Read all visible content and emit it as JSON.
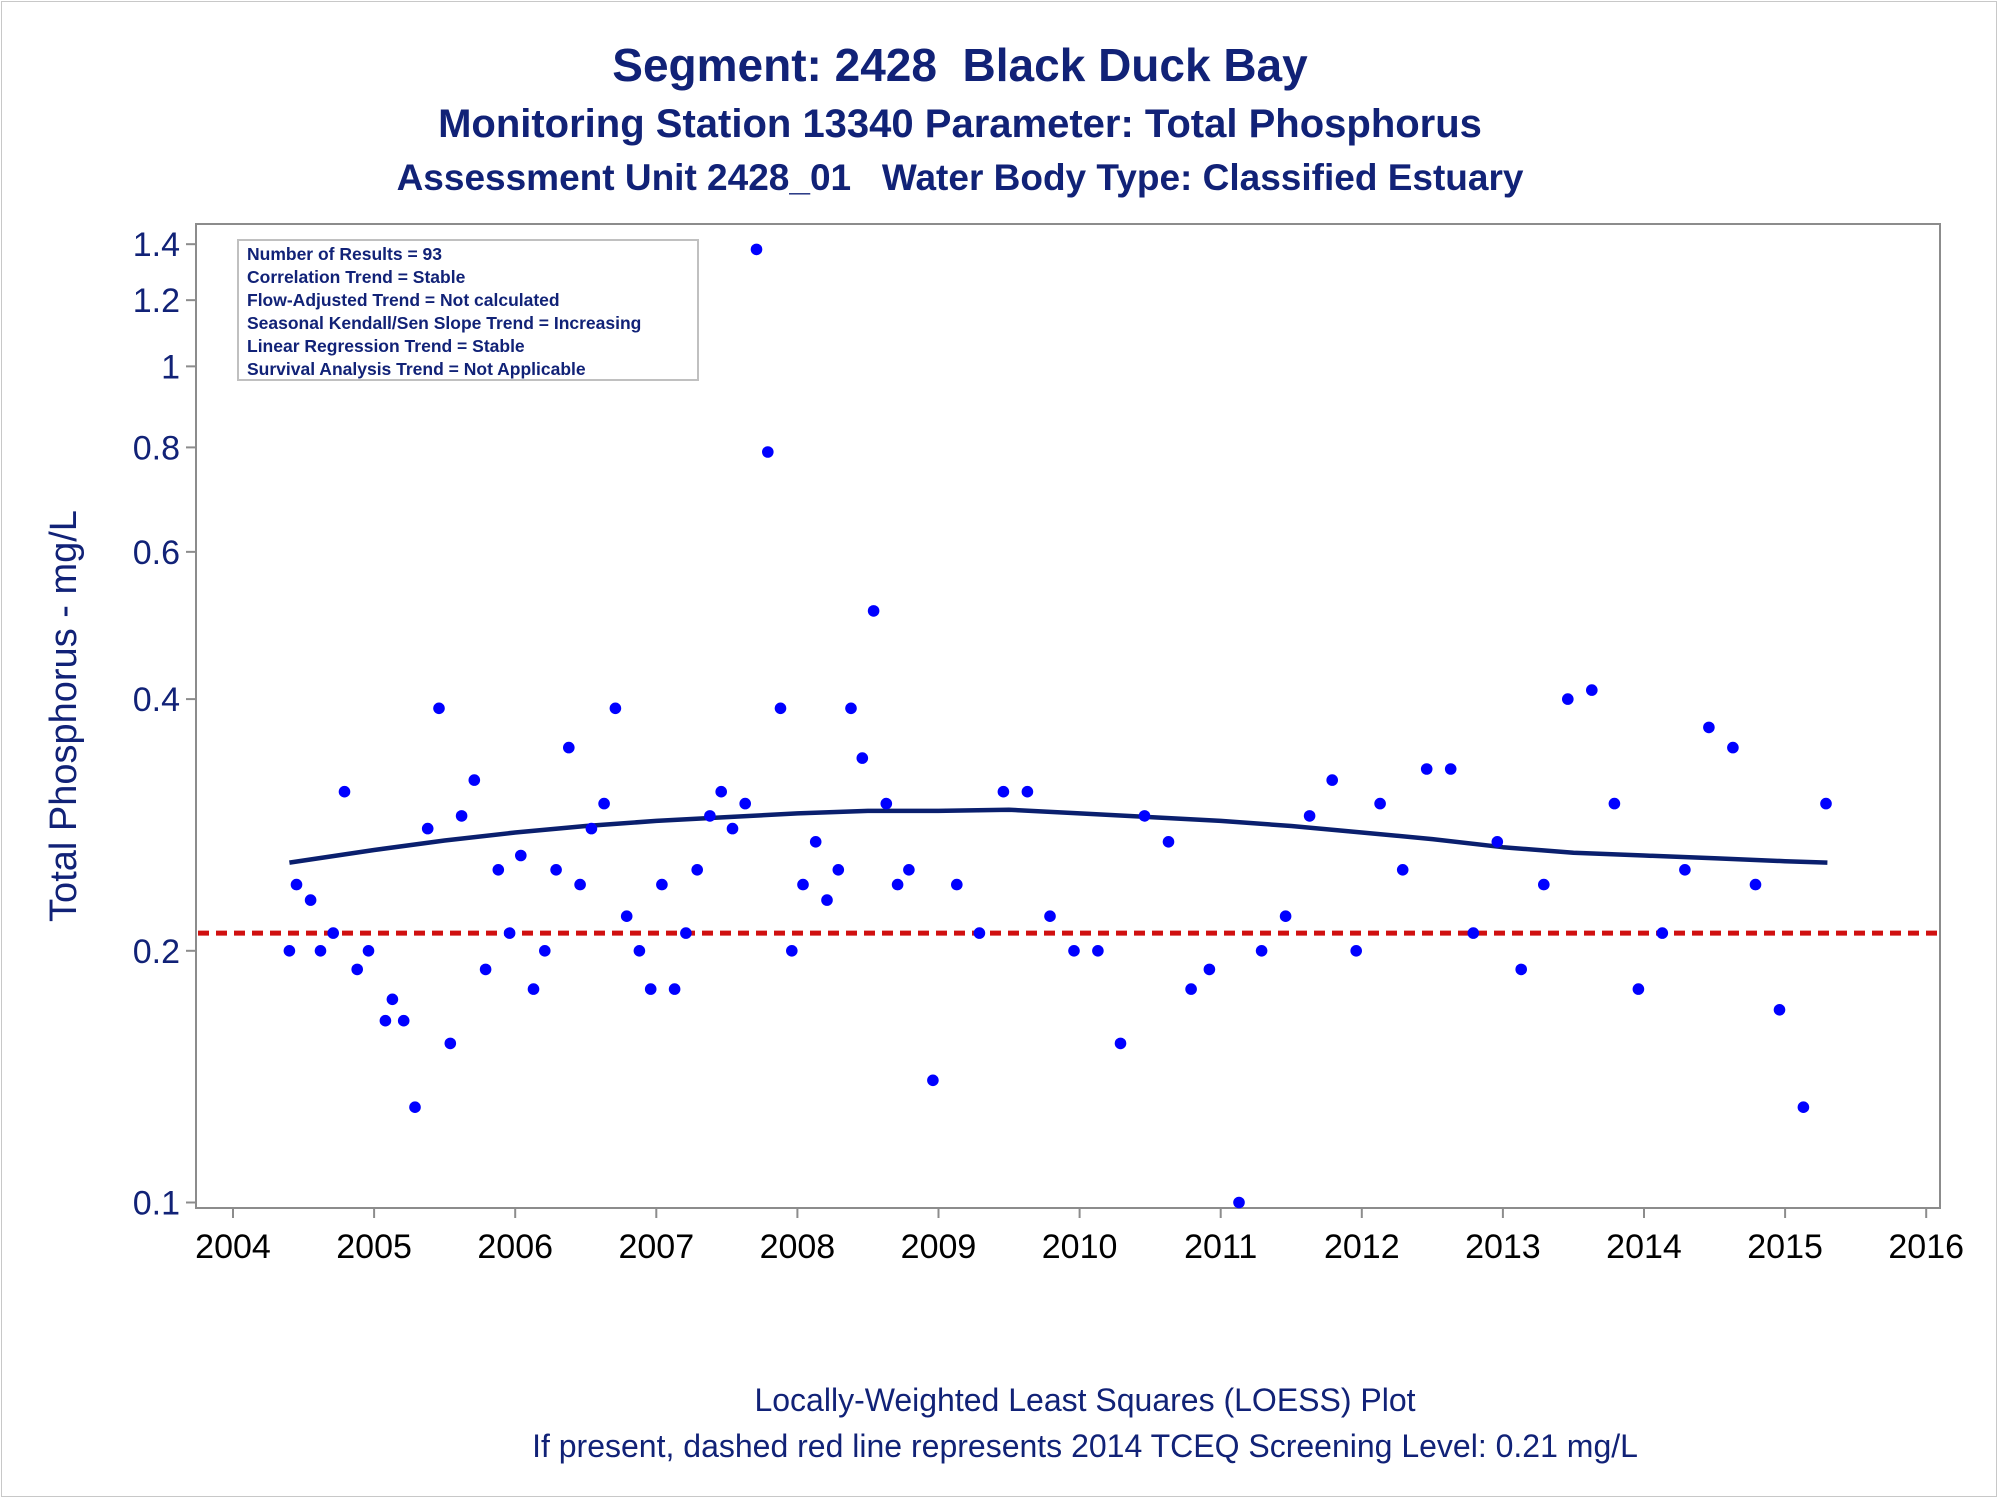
{
  "title": "Segment: 2428  Black Duck Bay",
  "subtitle1": "Monitoring Station 13340 Parameter: Total Phosphorus",
  "subtitle2": "Assessment Unit 2428_01   Water Body Type: Classified Estuary",
  "footnote1": "Locally-Weighted Least Squares (LOESS) Plot",
  "footnote2": "If present, dashed red line represents 2014 TCEQ Screening Level: 0.21 mg/L",
  "stats": [
    "Number of Results = 93",
    "Correlation Trend = Stable",
    "Flow-Adjusted Trend = Not calculated",
    "Seasonal Kendall/Sen Slope Trend = Increasing",
    "Linear Regression Trend = Stable",
    "Survival Analysis Trend = Not Applicable"
  ],
  "colors": {
    "text": "#112277",
    "points": "#0000ff",
    "loess": "#0a1f6e",
    "screening": "#d01010",
    "axis": "#8c8c8c"
  },
  "chart_data": {
    "type": "scatter",
    "ylabel": "Total Phosphorus - mg/L",
    "xlabel": "",
    "y_scale": "log",
    "ylim": [
      0.0985,
      1.48
    ],
    "xlim": [
      2004,
      2016
    ],
    "y_ticks": [
      0.1,
      0.2,
      0.4,
      0.6,
      0.8,
      1,
      1.2,
      1.4
    ],
    "y_tick_labels": [
      "0.1",
      "0.2",
      "0.4",
      "0.6",
      "0.8",
      "1",
      "1.2",
      "1.4"
    ],
    "x_ticks": [
      2004,
      2005,
      2006,
      2007,
      2008,
      2009,
      2010,
      2011,
      2012,
      2013,
      2014,
      2015,
      2016
    ],
    "x_tick_labels": [
      "2004",
      "2005",
      "2006",
      "2007",
      "2008",
      "2009",
      "2010",
      "2011",
      "2012",
      "2013",
      "2014",
      "2015",
      "2016"
    ],
    "grid": false,
    "legend": "top-left",
    "screening_level": 0.21,
    "points": [
      [
        2004.4,
        0.2
      ],
      [
        2004.45,
        0.24
      ],
      [
        2004.55,
        0.23
      ],
      [
        2004.62,
        0.2
      ],
      [
        2004.71,
        0.21
      ],
      [
        2004.79,
        0.31
      ],
      [
        2004.88,
        0.19
      ],
      [
        2004.96,
        0.2
      ],
      [
        2005.08,
        0.165
      ],
      [
        2005.13,
        0.175
      ],
      [
        2005.21,
        0.165
      ],
      [
        2005.29,
        0.13
      ],
      [
        2005.38,
        0.28
      ],
      [
        2005.46,
        0.39
      ],
      [
        2005.54,
        0.155
      ],
      [
        2005.62,
        0.29
      ],
      [
        2005.71,
        0.32
      ],
      [
        2005.79,
        0.19
      ],
      [
        2005.88,
        0.25
      ],
      [
        2005.96,
        0.21
      ],
      [
        2006.04,
        0.26
      ],
      [
        2006.13,
        0.18
      ],
      [
        2006.21,
        0.2
      ],
      [
        2006.29,
        0.25
      ],
      [
        2006.38,
        0.35
      ],
      [
        2006.46,
        0.24
      ],
      [
        2006.54,
        0.28
      ],
      [
        2006.63,
        0.3
      ],
      [
        2006.71,
        0.39
      ],
      [
        2006.79,
        0.22
      ],
      [
        2006.88,
        0.2
      ],
      [
        2006.96,
        0.18
      ],
      [
        2007.04,
        0.24
      ],
      [
        2007.13,
        0.18
      ],
      [
        2007.21,
        0.21
      ],
      [
        2007.29,
        0.25
      ],
      [
        2007.38,
        0.29
      ],
      [
        2007.46,
        0.31
      ],
      [
        2007.54,
        0.28
      ],
      [
        2007.63,
        0.3
      ],
      [
        2007.71,
        1.38
      ],
      [
        2007.79,
        0.79
      ],
      [
        2007.88,
        0.39
      ],
      [
        2007.96,
        0.2
      ],
      [
        2008.04,
        0.24
      ],
      [
        2008.13,
        0.27
      ],
      [
        2008.21,
        0.23
      ],
      [
        2008.29,
        0.25
      ],
      [
        2008.38,
        0.39
      ],
      [
        2008.46,
        0.34
      ],
      [
        2008.54,
        0.51
      ],
      [
        2008.63,
        0.3
      ],
      [
        2008.71,
        0.24
      ],
      [
        2008.79,
        0.25
      ],
      [
        2008.96,
        0.14
      ],
      [
        2009.13,
        0.24
      ],
      [
        2009.29,
        0.21
      ],
      [
        2009.46,
        0.31
      ],
      [
        2009.63,
        0.31
      ],
      [
        2009.79,
        0.22
      ],
      [
        2009.96,
        0.2
      ],
      [
        2010.13,
        0.2
      ],
      [
        2010.29,
        0.155
      ],
      [
        2010.46,
        0.29
      ],
      [
        2010.63,
        0.27
      ],
      [
        2010.79,
        0.18
      ],
      [
        2010.92,
        0.19
      ],
      [
        2011.13,
        0.1
      ],
      [
        2011.29,
        0.2
      ],
      [
        2011.46,
        0.22
      ],
      [
        2011.63,
        0.29
      ],
      [
        2011.79,
        0.32
      ],
      [
        2011.96,
        0.2
      ],
      [
        2012.13,
        0.3
      ],
      [
        2012.29,
        0.25
      ],
      [
        2012.46,
        0.33
      ],
      [
        2012.63,
        0.33
      ],
      [
        2012.79,
        0.21
      ],
      [
        2012.96,
        0.27
      ],
      [
        2013.13,
        0.19
      ],
      [
        2013.29,
        0.24
      ],
      [
        2013.46,
        0.4
      ],
      [
        2013.63,
        0.41
      ],
      [
        2013.79,
        0.3
      ],
      [
        2013.96,
        0.18
      ],
      [
        2014.13,
        0.21
      ],
      [
        2014.29,
        0.25
      ],
      [
        2014.46,
        0.37
      ],
      [
        2014.63,
        0.35
      ],
      [
        2014.79,
        0.24
      ],
      [
        2014.96,
        0.17
      ],
      [
        2015.13,
        0.13
      ],
      [
        2015.29,
        0.3
      ]
    ],
    "loess": [
      [
        2004.4,
        0.255
      ],
      [
        2005.0,
        0.264
      ],
      [
        2005.5,
        0.271
      ],
      [
        2006.0,
        0.277
      ],
      [
        2006.5,
        0.282
      ],
      [
        2007.0,
        0.286
      ],
      [
        2007.5,
        0.289
      ],
      [
        2008.0,
        0.292
      ],
      [
        2008.5,
        0.294
      ],
      [
        2009.0,
        0.294
      ],
      [
        2009.5,
        0.295
      ],
      [
        2010.0,
        0.292
      ],
      [
        2010.5,
        0.289
      ],
      [
        2011.0,
        0.286
      ],
      [
        2011.5,
        0.282
      ],
      [
        2012.0,
        0.277
      ],
      [
        2012.5,
        0.272
      ],
      [
        2013.0,
        0.266
      ],
      [
        2013.5,
        0.262
      ],
      [
        2014.0,
        0.26
      ],
      [
        2014.5,
        0.258
      ],
      [
        2015.0,
        0.256
      ],
      [
        2015.3,
        0.255
      ]
    ]
  }
}
